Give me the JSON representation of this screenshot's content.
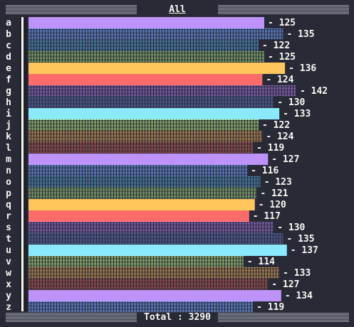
{
  "header": {
    "title": "All"
  },
  "footer": {
    "total_label": "Total : 3290"
  },
  "chart_data": {
    "type": "bar",
    "orientation": "horizontal",
    "title": "All",
    "categories": [
      "a",
      "b",
      "c",
      "d",
      "e",
      "f",
      "g",
      "h",
      "i",
      "j",
      "k",
      "l",
      "m",
      "n",
      "o",
      "p",
      "q",
      "r",
      "s",
      "t",
      "u",
      "v",
      "w",
      "x",
      "y",
      "z"
    ],
    "values": [
      125,
      135,
      122,
      125,
      136,
      124,
      142,
      130,
      133,
      122,
      124,
      119,
      127,
      116,
      123,
      121,
      120,
      117,
      130,
      135,
      137,
      114,
      133,
      127,
      134,
      119
    ],
    "colors": [
      "#bd93f9",
      "#6fa0ff",
      "#4f9acf",
      "#9acd76",
      "#ffc65c",
      "#ff6b6b",
      "#9b6fd6",
      "#5c6db8",
      "#8be9fd",
      "#b8e67a",
      "#e0a050",
      "#c0554a",
      "#bd93f9",
      "#6fa0ff",
      "#4f9acf",
      "#9acd76",
      "#ffc65c",
      "#ff6b6b",
      "#9b6fd6",
      "#5c6db8",
      "#8be9fd",
      "#b8e67a",
      "#e0a050",
      "#c0554a",
      "#bd93f9",
      "#6fa0ff"
    ],
    "solid": [
      true,
      false,
      false,
      false,
      true,
      true,
      false,
      false,
      true,
      false,
      false,
      false,
      true,
      false,
      false,
      false,
      true,
      true,
      false,
      false,
      true,
      false,
      false,
      false,
      true,
      false
    ],
    "xlim": [
      0,
      142
    ],
    "total": 3290
  }
}
